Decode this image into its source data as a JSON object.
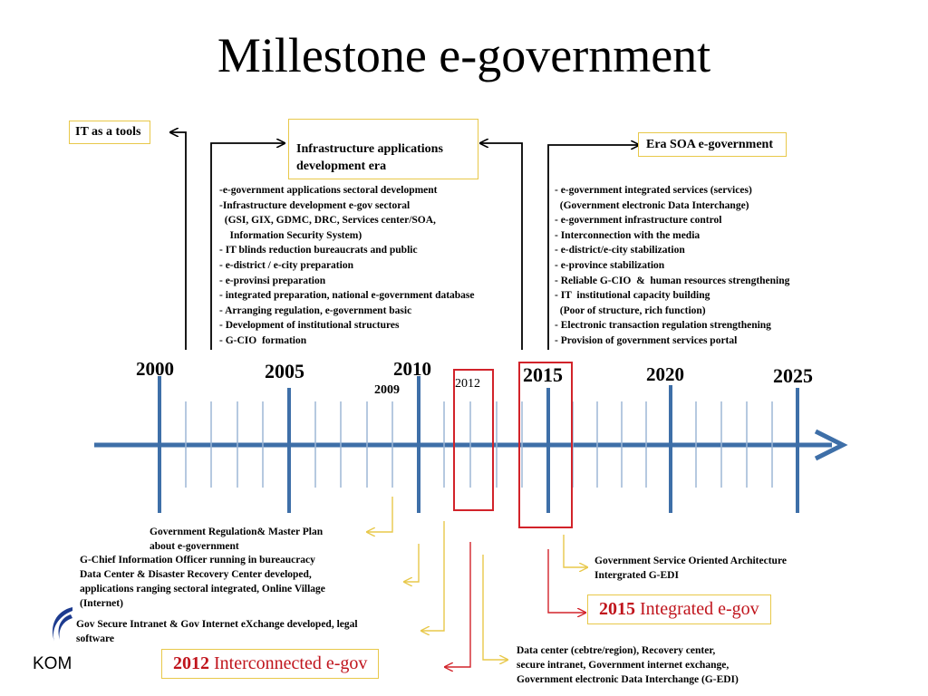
{
  "title": "Millestone e-government",
  "eras": {
    "left": "IT as a tools",
    "middle": "Infrastructure  applications\ndevelopment era",
    "right": "Era SOA e-government"
  },
  "years": {
    "y2000": "2000",
    "y2005": "2005",
    "y2010": "2010",
    "y2009": "2009",
    "y2012": "2012",
    "y2015": "2015",
    "y2020": "2020",
    "y2025": "2025"
  },
  "middle_list": [
    "-e-government applications sectoral development",
    "-Infrastructure development e-gov sectoral",
    "  (GSI, GIX, GDMC, DRC, Services center/SOA,",
    "    Information Security System)",
    "- IT blinds reduction bureaucrats and public",
    "- e-district / e-city preparation",
    "- e-provinsi preparation",
    "- integrated preparation, national e-government database",
    "- Arranging regulation, e-government basic",
    "- Development of institutional structures",
    "- G-CIO  formation"
  ],
  "right_list": [
    "- e-government integrated services (services)",
    "  (Government electronic Data Interchange)",
    "- e-government infrastructure control",
    "- Interconnection with the media",
    "- e-district/e-city stabilization",
    "- e-province stabilization",
    "- Reliable G-CIO  &  human resources strengthening",
    "- IT  institutional capacity building",
    "  (Poor of structure, rich function)",
    "- Electronic transaction regulation strengthening",
    "- Provision of government services portal"
  ],
  "notes": {
    "regulation": "Government Regulation& Master Plan\nabout e-government",
    "gcio": "G-Chief Information Officer running in bureaucracy\nData Center & Disaster Recovery Center developed,\napplications ranging sectoral integrated, Online Village\n(Internet)",
    "intranet": "Gov Secure Intranet & Gov Internet eXchange developed, legal\nsoftware",
    "datacenter": "Data center (cebtre/region), Recovery center,\nsecure intranet,  Government internet exchange,\nGovernment electronic Data Interchange (G-EDI)",
    "soa": "Government Service Oriented Architecture\nIntergrated G-EDI"
  },
  "milestones": {
    "m2015_year": "2015",
    "m2015_text": " Integrated e-gov",
    "m2012_year": "2012",
    "m2012_text": " Interconnected e-gov"
  },
  "logo_text": "KOM",
  "colors": {
    "axis": "#3e6fa8",
    "tick": "#9db7d6",
    "highlight": "#d2232a",
    "connector": "#e8c84a",
    "box_border": "#e8c84a"
  }
}
